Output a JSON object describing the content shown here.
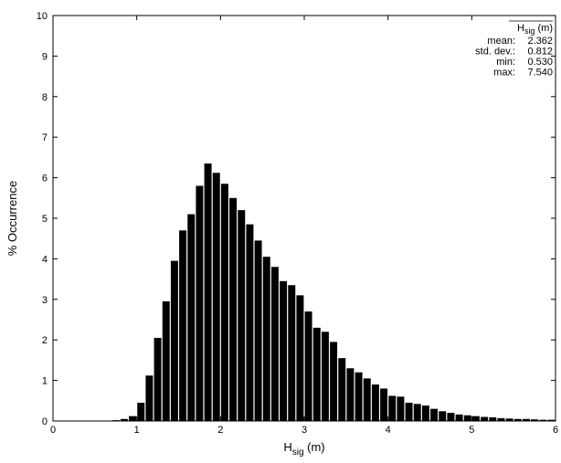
{
  "chart_data": {
    "type": "bar",
    "title": "",
    "xlabel": {
      "main": "H",
      "sub": "sig",
      "unit": " (m)"
    },
    "ylabel": "% Occurrence",
    "xlim": [
      0,
      6
    ],
    "ylim": [
      0,
      10
    ],
    "x_ticks": [
      "0",
      "1",
      "2",
      "3",
      "4",
      "5",
      "6"
    ],
    "y_ticks": [
      "0",
      "1",
      "2",
      "3",
      "4",
      "5",
      "6",
      "7",
      "8",
      "9",
      "10"
    ],
    "bin_width": 0.1,
    "bins": [
      {
        "x": 0.55,
        "y": 0.01
      },
      {
        "x": 0.65,
        "y": 0.01
      },
      {
        "x": 0.75,
        "y": 0.02
      },
      {
        "x": 0.85,
        "y": 0.05
      },
      {
        "x": 0.95,
        "y": 0.12
      },
      {
        "x": 1.05,
        "y": 0.45
      },
      {
        "x": 1.15,
        "y": 1.12
      },
      {
        "x": 1.25,
        "y": 2.05
      },
      {
        "x": 1.35,
        "y": 2.95
      },
      {
        "x": 1.45,
        "y": 3.95
      },
      {
        "x": 1.55,
        "y": 4.7
      },
      {
        "x": 1.65,
        "y": 5.1
      },
      {
        "x": 1.75,
        "y": 5.8
      },
      {
        "x": 1.85,
        "y": 6.35
      },
      {
        "x": 1.95,
        "y": 6.12
      },
      {
        "x": 2.05,
        "y": 5.85
      },
      {
        "x": 2.15,
        "y": 5.5
      },
      {
        "x": 2.25,
        "y": 5.2
      },
      {
        "x": 2.35,
        "y": 4.85
      },
      {
        "x": 2.45,
        "y": 4.45
      },
      {
        "x": 2.55,
        "y": 4.05
      },
      {
        "x": 2.65,
        "y": 3.8
      },
      {
        "x": 2.75,
        "y": 3.45
      },
      {
        "x": 2.85,
        "y": 3.35
      },
      {
        "x": 2.95,
        "y": 3.1
      },
      {
        "x": 3.05,
        "y": 2.7
      },
      {
        "x": 3.15,
        "y": 2.3
      },
      {
        "x": 3.25,
        "y": 2.2
      },
      {
        "x": 3.35,
        "y": 1.95
      },
      {
        "x": 3.45,
        "y": 1.55
      },
      {
        "x": 3.55,
        "y": 1.3
      },
      {
        "x": 3.65,
        "y": 1.2
      },
      {
        "x": 3.75,
        "y": 1.05
      },
      {
        "x": 3.85,
        "y": 0.9
      },
      {
        "x": 3.95,
        "y": 0.8
      },
      {
        "x": 4.05,
        "y": 0.62
      },
      {
        "x": 4.15,
        "y": 0.6
      },
      {
        "x": 4.25,
        "y": 0.45
      },
      {
        "x": 4.35,
        "y": 0.42
      },
      {
        "x": 4.45,
        "y": 0.38
      },
      {
        "x": 4.55,
        "y": 0.3
      },
      {
        "x": 4.65,
        "y": 0.24
      },
      {
        "x": 4.75,
        "y": 0.2
      },
      {
        "x": 4.85,
        "y": 0.16
      },
      {
        "x": 4.95,
        "y": 0.14
      },
      {
        "x": 5.05,
        "y": 0.12
      },
      {
        "x": 5.15,
        "y": 0.1
      },
      {
        "x": 5.25,
        "y": 0.09
      },
      {
        "x": 5.35,
        "y": 0.07
      },
      {
        "x": 5.45,
        "y": 0.06
      },
      {
        "x": 5.55,
        "y": 0.05
      },
      {
        "x": 5.65,
        "y": 0.05
      },
      {
        "x": 5.75,
        "y": 0.04
      },
      {
        "x": 5.85,
        "y": 0.03
      },
      {
        "x": 5.95,
        "y": 0.03
      }
    ],
    "bar_color": "#000000",
    "grid": false,
    "stats_box": {
      "header": {
        "main": "H",
        "sub": "sig",
        "unit": " (m)"
      },
      "rows": [
        {
          "label": "mean:",
          "value": "2.362"
        },
        {
          "label": "std. dev.:",
          "value": "0.812"
        },
        {
          "label": "min:",
          "value": "0.530"
        },
        {
          "label": "max:",
          "value": "7.540"
        }
      ],
      "placement": "top-right"
    }
  }
}
